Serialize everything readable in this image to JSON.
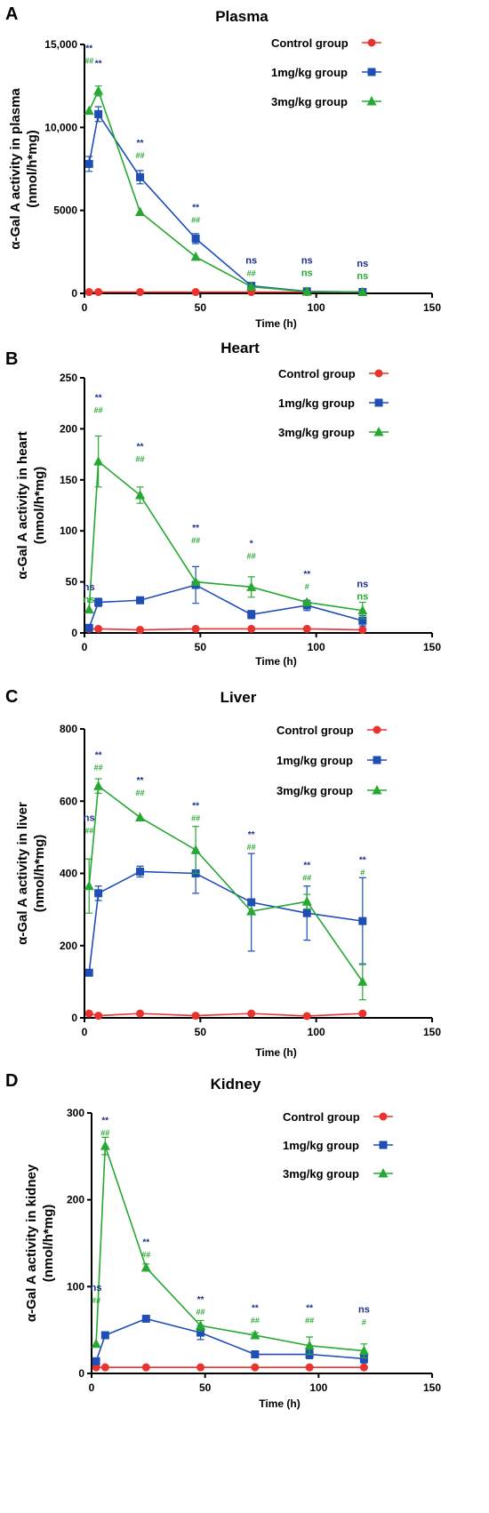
{
  "colors": {
    "control": "#e8332f",
    "low": "#1f4fb5",
    "high": "#26a832",
    "star": "#1a2e8a",
    "hash": "#26a832"
  },
  "chart_data": [
    {
      "type": "line",
      "panel": "A",
      "title": "Plasma",
      "xlabel": "Time (h)",
      "ylabel": "α-Gal A activity in plasma",
      "ylabel_units": "(nmol/h*mg)",
      "xlim": [
        0,
        150
      ],
      "ylim": [
        0,
        15000
      ],
      "xticks": [
        0,
        50,
        100,
        150
      ],
      "yticks": [
        0,
        5000,
        10000,
        15000
      ],
      "ytick_labels": [
        "0",
        "5000",
        "10,000",
        "15,000"
      ],
      "legend_position": "top-right",
      "series": [
        {
          "name": "Control group",
          "marker": "circle",
          "color": "#e8332f",
          "x": [
            2,
            6,
            24,
            48,
            72,
            96,
            120
          ],
          "y": [
            80,
            80,
            80,
            80,
            80,
            80,
            80
          ],
          "err": [
            0,
            0,
            0,
            0,
            0,
            0,
            0
          ]
        },
        {
          "name": "1mg/kg group",
          "marker": "square",
          "color": "#1f4fb5",
          "x": [
            2,
            6,
            24,
            48,
            72,
            96,
            120
          ],
          "y": [
            7800,
            10800,
            7000,
            3300,
            450,
            120,
            80
          ],
          "err": [
            450,
            450,
            400,
            300,
            50,
            20,
            0
          ]
        },
        {
          "name": "3mg/kg group",
          "marker": "triangle",
          "color": "#26a832",
          "x": [
            2,
            6,
            24,
            48,
            72,
            96,
            120
          ],
          "y": [
            11000,
            12200,
            4900,
            2200,
            400,
            100,
            80
          ],
          "err": [
            0,
            300,
            0,
            0,
            0,
            0,
            0
          ]
        }
      ],
      "annotations": [
        {
          "x": 2,
          "y_top": 14600,
          "labels": [
            "**",
            "##"
          ]
        },
        {
          "x": 6,
          "y_top": 13700,
          "labels": [
            "**"
          ]
        },
        {
          "x": 24,
          "y_top": 8900,
          "labels": [
            "**",
            "##"
          ]
        },
        {
          "x": 48,
          "y_top": 5000,
          "labels": [
            "**",
            "##"
          ]
        },
        {
          "x": 72,
          "y_top": 1800,
          "labels": [
            "ns",
            "##"
          ]
        },
        {
          "x": 96,
          "y_top": 1800,
          "labels": [
            "ns",
            "ns"
          ]
        },
        {
          "x": 120,
          "y_top": 1600,
          "labels": [
            "ns",
            "ns"
          ]
        }
      ]
    },
    {
      "type": "line",
      "panel": "B",
      "title": "Heart",
      "xlabel": "Time (h)",
      "ylabel": "α-Gal A activity in heart",
      "ylabel_units": "(nmol/h*mg)",
      "xlim": [
        0,
        150
      ],
      "ylim": [
        0,
        250
      ],
      "xticks": [
        0,
        50,
        100,
        150
      ],
      "yticks": [
        0,
        50,
        100,
        150,
        200,
        250
      ],
      "ytick_labels": [
        "0",
        "50",
        "100",
        "150",
        "200",
        "250"
      ],
      "legend_position": "top-right",
      "series": [
        {
          "name": "Control group",
          "marker": "circle",
          "color": "#e8332f",
          "x": [
            2,
            6,
            24,
            48,
            72,
            96,
            120
          ],
          "y": [
            4,
            4,
            3,
            4,
            4,
            4,
            3
          ],
          "err": [
            0,
            0,
            0,
            0,
            0,
            0,
            0
          ]
        },
        {
          "name": "1mg/kg group",
          "marker": "square",
          "color": "#1f4fb5",
          "x": [
            2,
            6,
            24,
            48,
            72,
            96,
            120
          ],
          "y": [
            5,
            30,
            32,
            47,
            18,
            27,
            12
          ],
          "err": [
            0,
            4,
            3,
            18,
            4,
            5,
            5
          ]
        },
        {
          "name": "3mg/kg group",
          "marker": "triangle",
          "color": "#26a832",
          "x": [
            2,
            6,
            24,
            48,
            72,
            96,
            120
          ],
          "y": [
            23,
            168,
            135,
            50,
            45,
            30,
            22
          ],
          "err": [
            0,
            25,
            8,
            0,
            10,
            0,
            8
          ]
        }
      ],
      "annotations": [
        {
          "x": 2,
          "y_top": 42,
          "labels": [
            "ns",
            "ns"
          ]
        },
        {
          "x": 6,
          "y_top": 228,
          "labels": [
            "**",
            "##"
          ]
        },
        {
          "x": 24,
          "y_top": 180,
          "labels": [
            "**",
            "##"
          ]
        },
        {
          "x": 48,
          "y_top": 100,
          "labels": [
            "**",
            "##"
          ]
        },
        {
          "x": 72,
          "y_top": 85,
          "labels": [
            "*",
            "##"
          ]
        },
        {
          "x": 96,
          "y_top": 55,
          "labels": [
            "**",
            "#"
          ]
        },
        {
          "x": 120,
          "y_top": 45,
          "labels": [
            "ns",
            "ns"
          ]
        }
      ]
    },
    {
      "type": "line",
      "panel": "C",
      "title": "Liver",
      "xlabel": "Time (h)",
      "ylabel": "α-Gal A activity in liver",
      "ylabel_units": "(nmol/h*mg)",
      "xlim": [
        0,
        150
      ],
      "ylim": [
        0,
        800
      ],
      "xticks": [
        0,
        50,
        100,
        150
      ],
      "yticks": [
        0,
        200,
        400,
        600,
        800
      ],
      "ytick_labels": [
        "0",
        "200",
        "400",
        "600",
        "800"
      ],
      "legend_position": "top-right",
      "series": [
        {
          "name": "Control group",
          "marker": "circle",
          "color": "#e8332f",
          "x": [
            2,
            6,
            24,
            48,
            72,
            96,
            120
          ],
          "y": [
            12,
            6,
            12,
            6,
            12,
            5,
            12
          ],
          "err": [
            0,
            0,
            0,
            0,
            0,
            0,
            0
          ]
        },
        {
          "name": "1mg/kg group",
          "marker": "square",
          "color": "#1f4fb5",
          "x": [
            2,
            6,
            24,
            48,
            72,
            96,
            120
          ],
          "y": [
            125,
            345,
            405,
            400,
            320,
            290,
            268
          ],
          "err": [
            0,
            20,
            15,
            55,
            135,
            75,
            120
          ]
        },
        {
          "name": "3mg/kg group",
          "marker": "triangle",
          "color": "#26a832",
          "x": [
            2,
            6,
            24,
            48,
            72,
            96,
            120
          ],
          "y": [
            365,
            642,
            555,
            465,
            295,
            322,
            100
          ],
          "err": [
            75,
            20,
            0,
            65,
            0,
            20,
            50
          ]
        }
      ],
      "annotations": [
        {
          "x": 2,
          "y_top": 545,
          "labels": [
            "ns",
            "##"
          ]
        },
        {
          "x": 6,
          "y_top": 720,
          "labels": [
            "**",
            "##"
          ]
        },
        {
          "x": 24,
          "y_top": 650,
          "labels": [
            "**",
            "##"
          ]
        },
        {
          "x": 48,
          "y_top": 580,
          "labels": [
            "**",
            "##"
          ]
        },
        {
          "x": 72,
          "y_top": 500,
          "labels": [
            "**",
            "##"
          ]
        },
        {
          "x": 96,
          "y_top": 415,
          "labels": [
            "**",
            "##"
          ]
        },
        {
          "x": 120,
          "y_top": 430,
          "labels": [
            "**",
            "#"
          ]
        }
      ]
    },
    {
      "type": "line",
      "panel": "D",
      "title": "Kidney",
      "xlabel": "Time (h)",
      "ylabel": "α-Gal A activity in kidney",
      "ylabel_units": "(nmol/h*mg)",
      "xlim": [
        0,
        150
      ],
      "ylim": [
        0,
        300
      ],
      "xticks": [
        0,
        50,
        100,
        150
      ],
      "yticks": [
        0,
        100,
        200,
        300
      ],
      "ytick_labels": [
        "0",
        "100",
        "200",
        "300"
      ],
      "legend_position": "top-right",
      "series": [
        {
          "name": "Control group",
          "marker": "circle",
          "color": "#e8332f",
          "x": [
            2,
            6,
            24,
            48,
            72,
            96,
            120
          ],
          "y": [
            7,
            7,
            7,
            7,
            7,
            7,
            7
          ],
          "err": [
            0,
            0,
            0,
            0,
            0,
            0,
            0
          ]
        },
        {
          "name": "1mg/kg group",
          "marker": "square",
          "color": "#1f4fb5",
          "x": [
            2,
            6,
            24,
            48,
            72,
            96,
            120
          ],
          "y": [
            14,
            44,
            63,
            47,
            22,
            22,
            17
          ],
          "err": [
            0,
            0,
            3,
            8,
            4,
            5,
            5
          ]
        },
        {
          "name": "3mg/kg group",
          "marker": "triangle",
          "color": "#26a832",
          "x": [
            2,
            6,
            24,
            48,
            72,
            96,
            120
          ],
          "y": [
            34,
            262,
            122,
            55,
            44,
            32,
            26
          ],
          "err": [
            0,
            10,
            4,
            6,
            3,
            10,
            8
          ]
        }
      ],
      "annotations": [
        {
          "x": 2,
          "y_top": 95,
          "labels": [
            "ns",
            "##"
          ]
        },
        {
          "x": 6,
          "y_top": 288,
          "labels": [
            "**",
            "##"
          ]
        },
        {
          "x": 24,
          "y_top": 148,
          "labels": [
            "**",
            "##"
          ]
        },
        {
          "x": 48,
          "y_top": 82,
          "labels": [
            "**",
            "##"
          ]
        },
        {
          "x": 72,
          "y_top": 72,
          "labels": [
            "**",
            "##"
          ]
        },
        {
          "x": 96,
          "y_top": 72,
          "labels": [
            "**",
            "##"
          ]
        },
        {
          "x": 120,
          "y_top": 70,
          "labels": [
            "ns",
            "#"
          ]
        }
      ]
    }
  ]
}
